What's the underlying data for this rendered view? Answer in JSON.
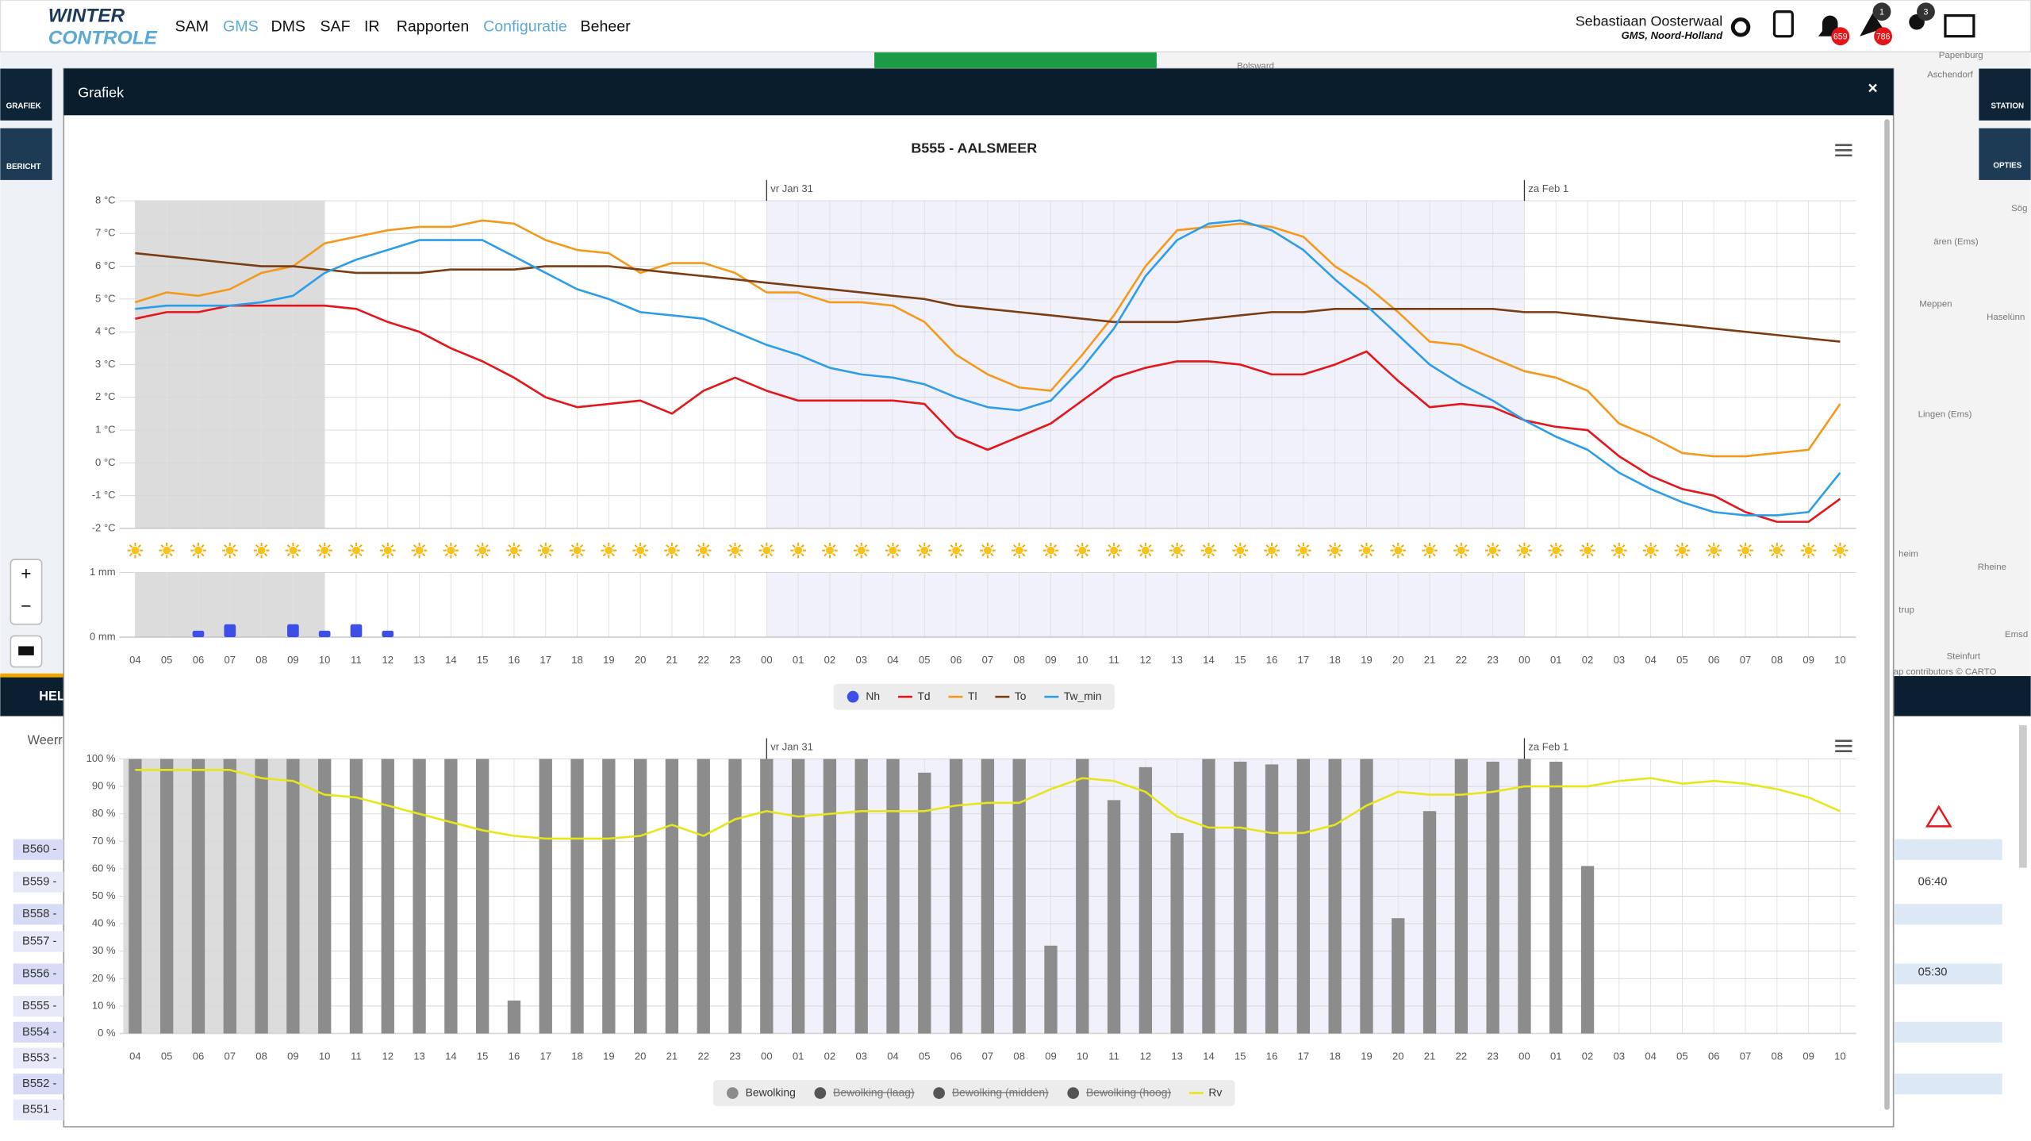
{
  "header": {
    "logo": [
      "WINTER",
      "CONTROLE"
    ],
    "nav": [
      {
        "label": "SAM",
        "highlighted": false
      },
      {
        "label": "GMS",
        "highlighted": true
      },
      {
        "label": "DMS",
        "highlighted": false
      },
      {
        "label": "SAF",
        "highlighted": false
      },
      {
        "label": "IR",
        "highlighted": false
      },
      {
        "label": "Rapporten",
        "highlighted": false
      },
      {
        "label": "Configuratie",
        "highlighted": true
      },
      {
        "label": "Beheer",
        "highlighted": false
      }
    ],
    "user_name": "Sebastiaan Oosterwaal",
    "user_region": "GMS, Noord-Holland",
    "badges": [
      "659",
      "786",
      "1",
      "3"
    ]
  },
  "sidebar": {
    "left": [
      "GRAFIEK",
      "BERICHT"
    ],
    "right": [
      "STATION",
      "OPTIES"
    ],
    "zoom": [
      "+",
      "−"
    ]
  },
  "background": {
    "map_labels": [
      "Bolsward",
      "Papenburg",
      "Aschendorf",
      "Sög",
      "ären (Ems)",
      "Meppen",
      "Haselünn",
      "Lingen (Ems)",
      "heim",
      "Rheine",
      "trup",
      "Emsd",
      "Steinfurt"
    ],
    "attribution": "ap contributors © CARTO",
    "tab": "HEL",
    "table_label": "Weerr",
    "stations": [
      "B560 -",
      "B559 -",
      "B558 -",
      "B557 -",
      "B556 -",
      "B555 -",
      "B554 -",
      "B553 -",
      "B552 -",
      "B551 -"
    ],
    "times": [
      "06:40",
      "05:30"
    ]
  },
  "modal": {
    "title": "Grafiek",
    "close": "×"
  },
  "chart_data": [
    {
      "type": "line",
      "title": "B555 - AALSMEER",
      "day_labels": [
        "vr Jan 31",
        "za Feb 1"
      ],
      "categories": [
        "04",
        "05",
        "06",
        "07",
        "08",
        "09",
        "10",
        "11",
        "12",
        "13",
        "14",
        "15",
        "16",
        "17",
        "18",
        "19",
        "20",
        "21",
        "22",
        "23",
        "00",
        "01",
        "02",
        "03",
        "04",
        "05",
        "06",
        "07",
        "08",
        "09",
        "10",
        "11",
        "12",
        "13",
        "14",
        "15",
        "16",
        "17",
        "18",
        "19",
        "20",
        "21",
        "22",
        "23",
        "00",
        "01",
        "02",
        "03",
        "04",
        "05",
        "06",
        "07",
        "08",
        "09",
        "10"
      ],
      "ylim": [
        -2,
        8
      ],
      "yticks": [
        {
          "value": -2,
          "label": "-2 °C"
        },
        {
          "value": -1,
          "label": "-1 °C"
        },
        {
          "value": 0,
          "label": "0 °C"
        },
        {
          "value": 1,
          "label": "1 °C"
        },
        {
          "value": 2,
          "label": "2 °C"
        },
        {
          "value": 3,
          "label": "3 °C"
        },
        {
          "value": 4,
          "label": "4 °C"
        },
        {
          "value": 5,
          "label": "5 °C"
        },
        {
          "value": 6,
          "label": "6 °C"
        },
        {
          "value": 7,
          "label": "7 °C"
        },
        {
          "value": 8,
          "label": "8 °C"
        }
      ],
      "y2lim": [
        0,
        1
      ],
      "y2ticks": [
        {
          "value": 0,
          "label": "0 mm"
        },
        {
          "value": 1,
          "label": "1 mm"
        }
      ],
      "grid": true,
      "series": [
        {
          "name": "Nh",
          "color": "#3d4fe6",
          "type": "bar",
          "axis": "y2",
          "values": [
            0,
            0,
            0.1,
            0.2,
            0,
            0.2,
            0.1,
            0.2,
            0.1,
            0,
            0,
            0,
            0,
            0,
            0,
            0,
            0,
            0,
            0,
            0,
            0,
            0,
            0,
            0,
            0,
            0,
            0,
            0,
            0,
            0,
            0,
            0,
            0,
            0,
            0,
            0,
            0,
            0,
            0,
            0,
            0,
            0,
            0,
            0,
            0,
            0,
            0,
            0,
            0,
            0,
            0,
            0,
            0,
            0,
            0
          ]
        },
        {
          "name": "Td",
          "color": "#e3161b",
          "values": [
            4.4,
            4.6,
            4.6,
            4.8,
            4.8,
            4.8,
            4.8,
            4.7,
            4.3,
            4.0,
            3.5,
            3.1,
            2.6,
            2.0,
            1.7,
            1.8,
            1.9,
            1.5,
            2.2,
            2.6,
            2.2,
            1.9,
            1.9,
            1.9,
            1.9,
            1.8,
            0.8,
            0.4,
            0.8,
            1.2,
            1.9,
            2.6,
            2.9,
            3.1,
            3.1,
            3.0,
            2.7,
            2.7,
            3.0,
            3.4,
            2.5,
            1.7,
            1.8,
            1.7,
            1.3,
            1.1,
            1.0,
            0.2,
            -0.4,
            -0.8,
            -1.0,
            -1.5,
            -1.8,
            -1.8,
            -1.1
          ]
        },
        {
          "name": "Tl",
          "color": "#f39a1c",
          "values": [
            4.9,
            5.2,
            5.1,
            5.3,
            5.8,
            6.0,
            6.7,
            6.9,
            7.1,
            7.2,
            7.2,
            7.4,
            7.3,
            6.8,
            6.5,
            6.4,
            5.8,
            6.1,
            6.1,
            5.8,
            5.2,
            5.2,
            4.9,
            4.9,
            4.8,
            4.3,
            3.3,
            2.7,
            2.3,
            2.2,
            3.3,
            4.5,
            6.0,
            7.1,
            7.2,
            7.3,
            7.2,
            6.9,
            6.0,
            5.4,
            4.6,
            3.7,
            3.6,
            3.2,
            2.8,
            2.6,
            2.2,
            1.2,
            0.8,
            0.3,
            0.2,
            0.2,
            0.3,
            0.4,
            1.8
          ]
        },
        {
          "name": "To",
          "color": "#7a3c12",
          "values": [
            6.4,
            6.3,
            6.2,
            6.1,
            6.0,
            6.0,
            5.9,
            5.8,
            5.8,
            5.8,
            5.9,
            5.9,
            5.9,
            6.0,
            6.0,
            6.0,
            5.9,
            5.8,
            5.7,
            5.6,
            5.5,
            5.4,
            5.3,
            5.2,
            5.1,
            5.0,
            4.8,
            4.7,
            4.6,
            4.5,
            4.4,
            4.3,
            4.3,
            4.3,
            4.4,
            4.5,
            4.6,
            4.6,
            4.7,
            4.7,
            4.7,
            4.7,
            4.7,
            4.7,
            4.6,
            4.6,
            4.5,
            4.4,
            4.3,
            4.2,
            4.1,
            4.0,
            3.9,
            3.8,
            3.7
          ]
        },
        {
          "name": "Tw_min",
          "color": "#2e9de8",
          "values": [
            4.7,
            4.8,
            4.8,
            4.8,
            4.9,
            5.1,
            5.8,
            6.2,
            6.5,
            6.8,
            6.8,
            6.8,
            6.3,
            5.8,
            5.3,
            5.0,
            4.6,
            4.5,
            4.4,
            4.0,
            3.6,
            3.3,
            2.9,
            2.7,
            2.6,
            2.4,
            2.0,
            1.7,
            1.6,
            1.9,
            2.9,
            4.1,
            5.7,
            6.8,
            7.3,
            7.4,
            7.1,
            6.5,
            5.6,
            4.8,
            3.9,
            3.0,
            2.4,
            1.9,
            1.3,
            0.8,
            0.4,
            -0.3,
            -0.8,
            -1.2,
            -1.5,
            -1.6,
            -1.6,
            -1.5,
            -0.3
          ]
        }
      ]
    },
    {
      "type": "bar",
      "day_labels": [
        "vr Jan 31",
        "za Feb 1"
      ],
      "categories": [
        "04",
        "05",
        "06",
        "07",
        "08",
        "09",
        "10",
        "11",
        "12",
        "13",
        "14",
        "15",
        "16",
        "17",
        "18",
        "19",
        "20",
        "21",
        "22",
        "23",
        "00",
        "01",
        "02",
        "03",
        "04",
        "05",
        "06",
        "07",
        "08",
        "09",
        "10",
        "11",
        "12",
        "13",
        "14",
        "15",
        "16",
        "17",
        "18",
        "19",
        "20",
        "21",
        "22",
        "23",
        "00",
        "01",
        "02",
        "03",
        "04",
        "05",
        "06",
        "07",
        "08",
        "09",
        "10"
      ],
      "ylim": [
        0,
        100
      ],
      "yticks": [
        {
          "value": 0,
          "label": "0 %"
        },
        {
          "value": 10,
          "label": "10 %"
        },
        {
          "value": 20,
          "label": "20 %"
        },
        {
          "value": 30,
          "label": "30 %"
        },
        {
          "value": 40,
          "label": "40 %"
        },
        {
          "value": 50,
          "label": "50 %"
        },
        {
          "value": 60,
          "label": "60 %"
        },
        {
          "value": 70,
          "label": "70 %"
        },
        {
          "value": 80,
          "label": "80 %"
        },
        {
          "value": 90,
          "label": "90 %"
        },
        {
          "value": 100,
          "label": "100 %"
        }
      ],
      "grid": true,
      "series": [
        {
          "name": "Bewolking",
          "color": "#8c8c8c",
          "type": "bar",
          "values": [
            100,
            100,
            100,
            100,
            100,
            100,
            100,
            100,
            100,
            100,
            100,
            100,
            12,
            100,
            100,
            100,
            100,
            100,
            100,
            100,
            100,
            100,
            100,
            100,
            100,
            95,
            100,
            100,
            100,
            32,
            100,
            85,
            97,
            73,
            100,
            99,
            98,
            100,
            100,
            100,
            42,
            81,
            100,
            99,
            100,
            99,
            61,
            null,
            null,
            null,
            null,
            null,
            null,
            null,
            null
          ]
        },
        {
          "name": "Bewolking (laag)",
          "color": "#555555",
          "type": "bar",
          "visible": false
        },
        {
          "name": "Bewolking (midden)",
          "color": "#555555",
          "type": "bar",
          "visible": false
        },
        {
          "name": "Bewolking (hoog)",
          "color": "#555555",
          "type": "bar",
          "visible": false
        },
        {
          "name": "Rv",
          "color": "#e6e61a",
          "type": "line",
          "values": [
            96,
            96,
            96,
            96,
            93,
            92,
            87,
            86,
            83,
            80,
            77,
            74,
            72,
            71,
            71,
            71,
            72,
            76,
            72,
            78,
            81,
            79,
            80,
            81,
            81,
            81,
            83,
            84,
            84,
            89,
            93,
            92,
            88,
            79,
            75,
            75,
            73,
            73,
            76,
            83,
            88,
            87,
            87,
            88,
            90,
            90,
            90,
            92,
            93,
            91,
            92,
            91,
            89,
            86,
            81
          ]
        }
      ]
    }
  ]
}
